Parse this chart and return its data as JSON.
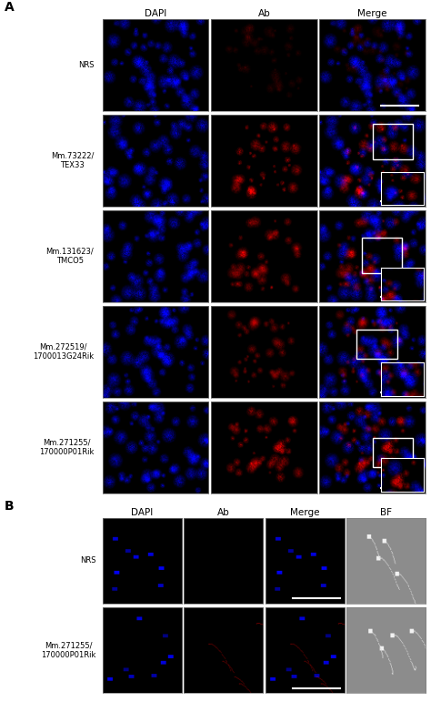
{
  "fig_width": 4.74,
  "fig_height": 7.71,
  "bg_color": "#ffffff",
  "panel_A_label": "A",
  "panel_B_label": "B",
  "section_A_col_labels": [
    "DAPI",
    "Ab",
    "Merge"
  ],
  "section_A_row_labels": [
    "NRS",
    "Mm.73222/\nTEX33",
    "Mm.131623/\nTMCO5",
    "Mm.272519/\n1700013G24Rik",
    "Mm.271255/\n170000P01Rik"
  ],
  "section_B_col_labels": [
    "DAPI",
    "Ab",
    "Merge",
    "BF"
  ],
  "section_B_row_labels": [
    "NRS",
    "Mm.271255/\n170000P01Rik"
  ],
  "label_fontsize": 6.0,
  "col_label_fontsize": 7.5,
  "panel_label_fontsize": 10
}
